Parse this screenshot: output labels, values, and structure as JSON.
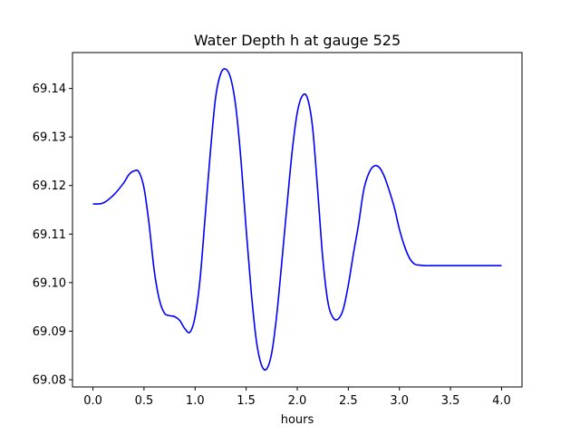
{
  "chart_data": {
    "type": "line",
    "title": "Water Depth h at gauge 525",
    "xlabel": "hours",
    "ylabel": "",
    "xlim": [
      -0.2,
      4.2
    ],
    "ylim": [
      69.0785,
      69.1474
    ],
    "xticks": [
      0.0,
      0.5,
      1.0,
      1.5,
      2.0,
      2.5,
      3.0,
      3.5,
      4.0
    ],
    "xtick_labels": [
      "0.0",
      "0.5",
      "1.0",
      "1.5",
      "2.0",
      "2.5",
      "3.0",
      "3.5",
      "4.0"
    ],
    "yticks": [
      69.08,
      69.09,
      69.1,
      69.11,
      69.12,
      69.13,
      69.14
    ],
    "ytick_labels": [
      "69.08",
      "69.09",
      "69.10",
      "69.11",
      "69.12",
      "69.13",
      "69.14"
    ],
    "grid": false,
    "series": [
      {
        "color": "#0000ff",
        "x": [
          0.0,
          0.1,
          0.2,
          0.3,
          0.35,
          0.4,
          0.45,
          0.5,
          0.55,
          0.6,
          0.65,
          0.7,
          0.75,
          0.8,
          0.85,
          0.9,
          0.95,
          1.0,
          1.05,
          1.1,
          1.15,
          1.2,
          1.25,
          1.3,
          1.35,
          1.4,
          1.45,
          1.5,
          1.55,
          1.6,
          1.65,
          1.7,
          1.75,
          1.8,
          1.85,
          1.9,
          1.95,
          2.0,
          2.05,
          2.1,
          2.15,
          2.2,
          2.25,
          2.3,
          2.35,
          2.4,
          2.45,
          2.5,
          2.55,
          2.6,
          2.65,
          2.7,
          2.75,
          2.8,
          2.85,
          2.9,
          2.95,
          3.0,
          3.05,
          3.1,
          3.15,
          3.2,
          3.25,
          3.3,
          3.35,
          3.4,
          3.45,
          3.5,
          3.55,
          3.6,
          3.65,
          3.7,
          3.75,
          3.8,
          3.85,
          3.9,
          3.95,
          4.0
        ],
        "y": [
          69.1162,
          69.1164,
          69.118,
          69.1205,
          69.1222,
          69.123,
          69.1228,
          69.1195,
          69.112,
          69.1025,
          69.0965,
          69.0937,
          69.0932,
          69.093,
          69.0922,
          69.0905,
          69.0898,
          69.093,
          69.101,
          69.114,
          69.127,
          69.138,
          69.143,
          69.144,
          69.142,
          69.136,
          69.125,
          69.111,
          69.098,
          69.088,
          69.083,
          69.0822,
          69.0855,
          69.0935,
          69.1045,
          69.116,
          69.127,
          69.135,
          69.1385,
          69.138,
          69.132,
          69.119,
          69.105,
          69.096,
          69.0928,
          69.0925,
          69.0945,
          69.0995,
          69.106,
          69.112,
          69.119,
          69.1225,
          69.124,
          69.1238,
          69.122,
          69.119,
          69.1155,
          69.111,
          69.1075,
          69.105,
          69.1038,
          69.1036,
          69.1035,
          69.1035,
          69.1035,
          69.1035,
          69.1035,
          69.1035,
          69.1035,
          69.1035,
          69.1035,
          69.1035,
          69.1035,
          69.1035,
          69.1035,
          69.1035,
          69.1035,
          69.1035
        ]
      }
    ]
  }
}
